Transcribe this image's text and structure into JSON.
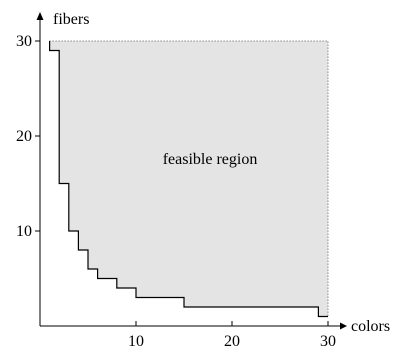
{
  "chart_data": {
    "type": "area",
    "xlabel": "colors",
    "ylabel": "fibers",
    "xlim": [
      0,
      30
    ],
    "ylim": [
      0,
      30
    ],
    "x_ticks": [
      10,
      20,
      30
    ],
    "y_ticks": [
      10,
      20,
      30
    ],
    "grid": false,
    "annotation": "feasible region",
    "boundary": {
      "x": [
        1,
        2,
        2,
        3,
        3,
        4,
        4,
        5,
        5,
        6,
        6,
        8,
        8,
        10,
        10,
        15,
        15,
        29,
        29,
        30
      ],
      "y": [
        29,
        29,
        15,
        15,
        10,
        10,
        8,
        8,
        6,
        6,
        5,
        5,
        4,
        4,
        3,
        3,
        2,
        2,
        1,
        1
      ]
    },
    "colors": {
      "region_fill": "#e4e4e4",
      "boundary": "#000000"
    }
  }
}
